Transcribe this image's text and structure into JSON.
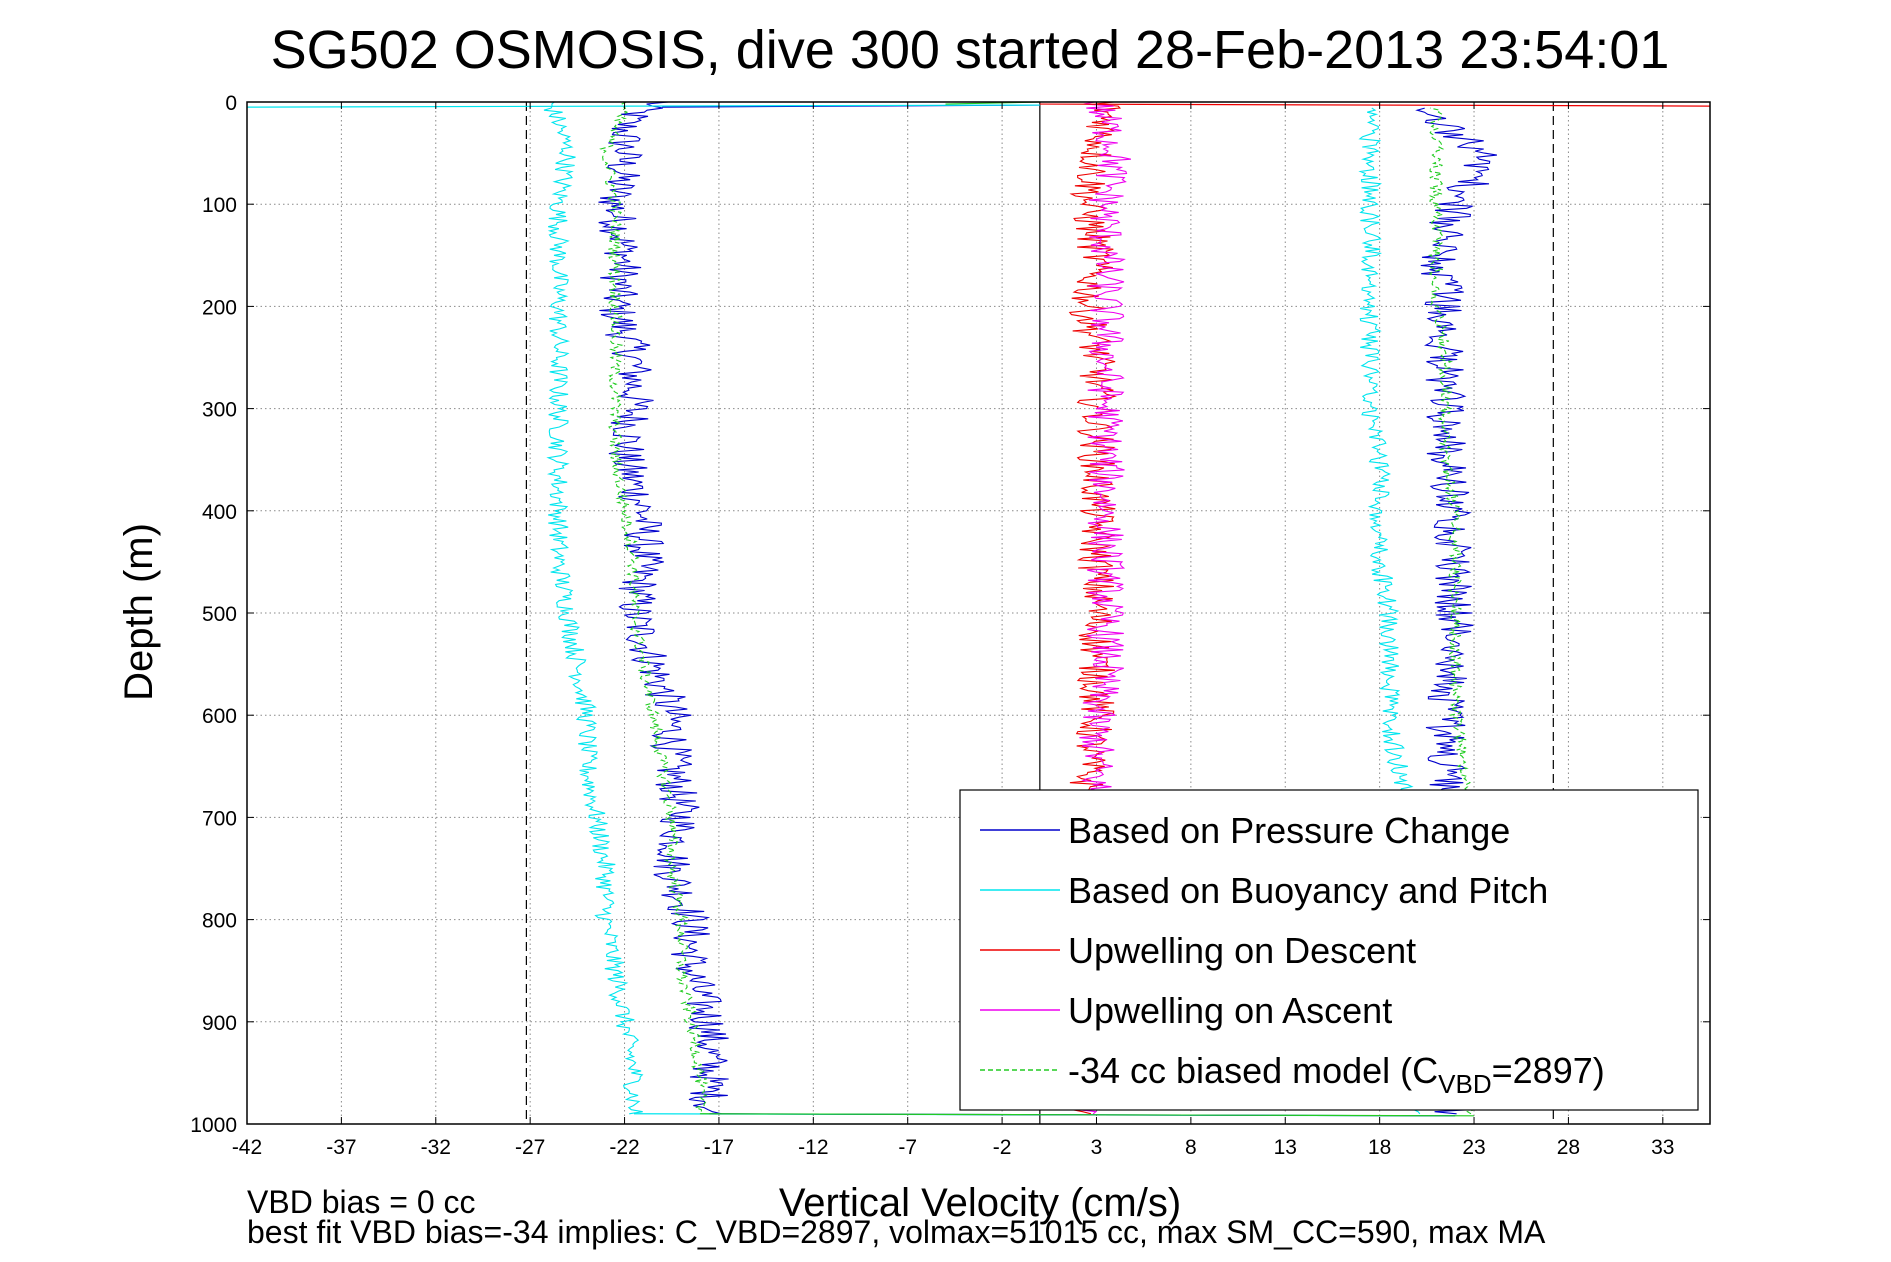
{
  "chart_data": {
    "type": "line",
    "title": "SG502 OSMOSIS, dive 300 started 28-Feb-2013 23:54:01",
    "xlabel": "Vertical Velocity (cm/s)",
    "ylabel": "Depth (m)",
    "xlim": [
      -42,
      35.5
    ],
    "ylim": [
      1000,
      0
    ],
    "xticks": [
      -42,
      -37,
      -32,
      -27,
      -22,
      -17,
      -12,
      -7,
      -2,
      3,
      8,
      13,
      18,
      23,
      28,
      33
    ],
    "yticks": [
      0,
      100,
      200,
      300,
      400,
      500,
      600,
      700,
      800,
      900,
      1000
    ],
    "grid": true,
    "legend_position": "bottom-right",
    "reference_lines": {
      "solid_vertical": 0,
      "dashed_vertical": [
        -27.2,
        27.2
      ]
    },
    "series": [
      {
        "name": "Based on Pressure Change",
        "color": "#0000cc",
        "legs": [
          {
            "depth": [
              0,
              5,
              20,
              50,
              100,
              150,
              200,
              250,
              300,
              350,
              400,
              450,
              500,
              550,
              600,
              650,
              700,
              750,
              800,
              850,
              900,
              950,
              990
            ],
            "velocity": [
              -20,
              -21,
              -22,
              -22,
              -22.5,
              -22,
              -22.5,
              -21.5,
              -21.5,
              -22,
              -21,
              -21,
              -21.5,
              -20.5,
              -19.5,
              -19.5,
              -19,
              -19.5,
              -18.5,
              -18.5,
              -17.5,
              -17.5,
              -17.5
            ]
          },
          {
            "depth": [
              990,
              950,
              900,
              850,
              800,
              750,
              700,
              650,
              600,
              550,
              500,
              450,
              400,
              350,
              300,
              250,
              200,
              150,
              100,
              60,
              40,
              20,
              5
            ],
            "velocity": [
              22,
              22,
              22,
              22,
              22,
              21.5,
              21.5,
              21.5,
              21.5,
              22,
              22,
              22,
              22,
              21.5,
              21.5,
              21.5,
              21.5,
              21,
              22,
              23.5,
              23,
              21,
              20
            ]
          }
        ]
      },
      {
        "name": "Based on Buoyancy and Pitch",
        "color": "#00e5ee",
        "legs": [
          {
            "depth": [
              0,
              20,
              50,
              100,
              150,
              200,
              250,
              300,
              350,
              400,
              450,
              500,
              550,
              600,
              650,
              700,
              750,
              800,
              850,
              900,
              950,
              990
            ],
            "velocity": [
              -26,
              -25.5,
              -25,
              -25.5,
              -25.5,
              -25.5,
              -25.5,
              -25.5,
              -25.5,
              -25.5,
              -25.5,
              -25,
              -24.5,
              -24,
              -24,
              -23.5,
              -23,
              -23,
              -22.5,
              -22,
              -21.5,
              -21.5
            ]
          },
          {
            "depth": [
              990,
              950,
              900,
              850,
              800,
              750,
              700,
              650,
              600,
              550,
              500,
              450,
              400,
              350,
              300,
              250,
              200,
              150,
              100,
              50,
              20,
              5
            ],
            "velocity": [
              20,
              20,
              20,
              20,
              20,
              19.5,
              19.5,
              19,
              18.5,
              18.5,
              18.5,
              18,
              18,
              18,
              17.5,
              17.5,
              17.5,
              17.5,
              17.5,
              17.5,
              17.5,
              17.5
            ]
          }
        ]
      },
      {
        "name": "Upwelling on Descent",
        "color": "#ee0000",
        "legs": [
          {
            "depth": [
              0,
              20,
              50,
              100,
              150,
              200,
              250,
              300,
              350,
              400,
              450,
              500,
              550,
              600,
              650,
              700,
              750,
              800,
              850,
              900,
              950,
              990
            ],
            "velocity": [
              3.5,
              3.5,
              3,
              2.5,
              3,
              2.5,
              3,
              3,
              3,
              3,
              3,
              3,
              3,
              3,
              2.5,
              2.5,
              2.5,
              2.5,
              2.5,
              2.5,
              2.5,
              2.5
            ]
          }
        ]
      },
      {
        "name": "Upwelling on Ascent",
        "color": "#ee00ee",
        "legs": [
          {
            "depth": [
              0,
              20,
              50,
              100,
              150,
              200,
              250,
              300,
              350,
              400,
              450,
              500,
              550,
              600,
              650,
              700,
              750,
              800,
              850,
              900,
              950,
              990
            ],
            "velocity": [
              3,
              3.5,
              4,
              3.5,
              3.5,
              3.5,
              3.5,
              3.5,
              3.5,
              3.5,
              3.5,
              3.5,
              3.5,
              3,
              3,
              3,
              3,
              3,
              3,
              3,
              3,
              3
            ]
          }
        ]
      },
      {
        "name": "-34 cc biased model (C",
        "color": "#22cc22",
        "dashed": true,
        "legs": [
          {
            "depth": [
              0,
              50,
              100,
              150,
              200,
              250,
              300,
              350,
              400,
              450,
              500,
              550,
              600,
              650,
              700,
              750,
              800,
              850,
              900,
              950,
              990
            ],
            "velocity": [
              -22,
              -23,
              -22.5,
              -22.5,
              -22.5,
              -22.5,
              -22.5,
              -22.5,
              -22,
              -21.5,
              -21.5,
              -21,
              -20.5,
              -20,
              -19.5,
              -19.5,
              -19,
              -19,
              -18.5,
              -18,
              -18
            ]
          },
          {
            "depth": [
              990,
              950,
              900,
              850,
              800,
              750,
              700,
              650,
              600,
              550,
              500,
              450,
              400,
              350,
              300,
              250,
              200,
              150,
              100,
              50,
              20,
              5
            ],
            "velocity": [
              23,
              23,
              23,
              23,
              23,
              22.5,
              22.5,
              22.5,
              22,
              22,
              22,
              22,
              22,
              21.5,
              21.5,
              21.5,
              21,
              21,
              21,
              21,
              21,
              21
            ]
          }
        ]
      }
    ],
    "legend_suffix": {
      "subscript": "VBD",
      "after": "=2897)"
    },
    "footer": {
      "line1": "VBD bias = 0 cc",
      "line2": "best fit VBD bias=-34 implies: C_VBD=2897, volmax=51015 cc, max SM_CC=590, max MA"
    }
  }
}
